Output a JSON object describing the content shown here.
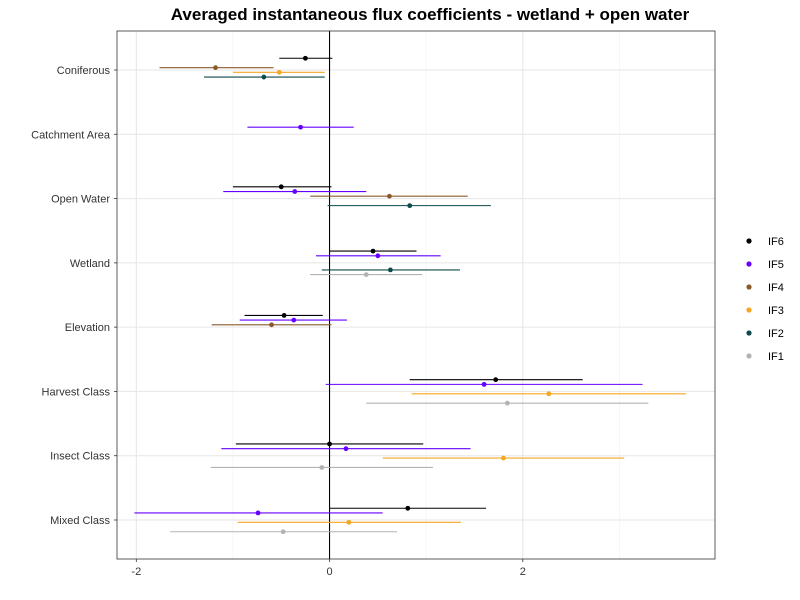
{
  "chart_data": {
    "type": "scatter",
    "title": "Averaged instantaneous flux coefficients - wetland + open water",
    "xlabel": "",
    "ylabel": "",
    "xlim": [
      -2.2,
      3.99
    ],
    "x_ticks": [
      -2,
      0,
      2
    ],
    "x_tick_labels": [
      "-2",
      "0",
      "2"
    ],
    "grid": true,
    "reference_line_x": 0,
    "legend_position": "right",
    "categories": [
      "Coniferous",
      "Catchment Area",
      "Open Water",
      "Wetland",
      "Elevation",
      "Harvest Class",
      "Insect Class",
      "Mixed Class"
    ],
    "series": [
      {
        "name": "IF6",
        "color": "#000000",
        "points": [
          {
            "category": "Coniferous",
            "estimate": -0.25,
            "low": -0.52,
            "high": 0.03
          },
          {
            "category": "Open Water",
            "estimate": -0.5,
            "low": -1.0,
            "high": 0.02
          },
          {
            "category": "Wetland",
            "estimate": 0.45,
            "low": 0.0,
            "high": 0.9
          },
          {
            "category": "Elevation",
            "estimate": -0.47,
            "low": -0.88,
            "high": -0.07
          },
          {
            "category": "Harvest Class",
            "estimate": 1.72,
            "low": 0.83,
            "high": 2.62
          },
          {
            "category": "Insect Class",
            "estimate": 0.0,
            "low": -0.97,
            "high": 0.97
          },
          {
            "category": "Mixed Class",
            "estimate": 0.81,
            "low": 0.0,
            "high": 1.62
          }
        ]
      },
      {
        "name": "IF5",
        "color": "#6600ff",
        "points": [
          {
            "category": "Catchment Area",
            "estimate": -0.3,
            "low": -0.85,
            "high": 0.25
          },
          {
            "category": "Open Water",
            "estimate": -0.36,
            "low": -1.1,
            "high": 0.38
          },
          {
            "category": "Wetland",
            "estimate": 0.5,
            "low": -0.14,
            "high": 1.15
          },
          {
            "category": "Elevation",
            "estimate": -0.37,
            "low": -0.93,
            "high": 0.18
          },
          {
            "category": "Harvest Class",
            "estimate": 1.6,
            "low": -0.04,
            "high": 3.24
          },
          {
            "category": "Insect Class",
            "estimate": 0.17,
            "low": -1.12,
            "high": 1.46
          },
          {
            "category": "Mixed Class",
            "estimate": -0.74,
            "low": -2.02,
            "high": 0.55
          }
        ]
      },
      {
        "name": "IF4",
        "color": "#8b5a2b",
        "points": [
          {
            "category": "Coniferous",
            "estimate": -1.18,
            "low": -1.76,
            "high": -0.58
          },
          {
            "category": "Open Water",
            "estimate": 0.62,
            "low": -0.2,
            "high": 1.43
          },
          {
            "category": "Elevation",
            "estimate": -0.6,
            "low": -1.22,
            "high": 0.02
          }
        ]
      },
      {
        "name": "IF3",
        "color": "#f5a623",
        "points": [
          {
            "category": "Coniferous",
            "estimate": -0.52,
            "low": -1.0,
            "high": -0.05
          },
          {
            "category": "Harvest Class",
            "estimate": 2.27,
            "low": 0.85,
            "high": 3.69
          },
          {
            "category": "Insect Class",
            "estimate": 1.8,
            "low": 0.55,
            "high": 3.05
          },
          {
            "category": "Mixed Class",
            "estimate": 0.2,
            "low": -0.95,
            "high": 1.36
          }
        ]
      },
      {
        "name": "IF2",
        "color": "#0d4a4a",
        "points": [
          {
            "category": "Coniferous",
            "estimate": -0.68,
            "low": -1.3,
            "high": -0.05
          },
          {
            "category": "Open Water",
            "estimate": 0.83,
            "low": -0.02,
            "high": 1.67
          },
          {
            "category": "Wetland",
            "estimate": 0.63,
            "low": -0.08,
            "high": 1.35
          }
        ]
      },
      {
        "name": "IF1",
        "color": "#b3b3b3",
        "points": [
          {
            "category": "Wetland",
            "estimate": 0.38,
            "low": -0.2,
            "high": 0.96
          },
          {
            "category": "Harvest Class",
            "estimate": 1.84,
            "low": 0.38,
            "high": 3.3
          },
          {
            "category": "Insect Class",
            "estimate": -0.08,
            "low": -1.23,
            "high": 1.07
          },
          {
            "category": "Mixed Class",
            "estimate": -0.48,
            "low": -1.65,
            "high": 0.7
          }
        ]
      }
    ]
  }
}
